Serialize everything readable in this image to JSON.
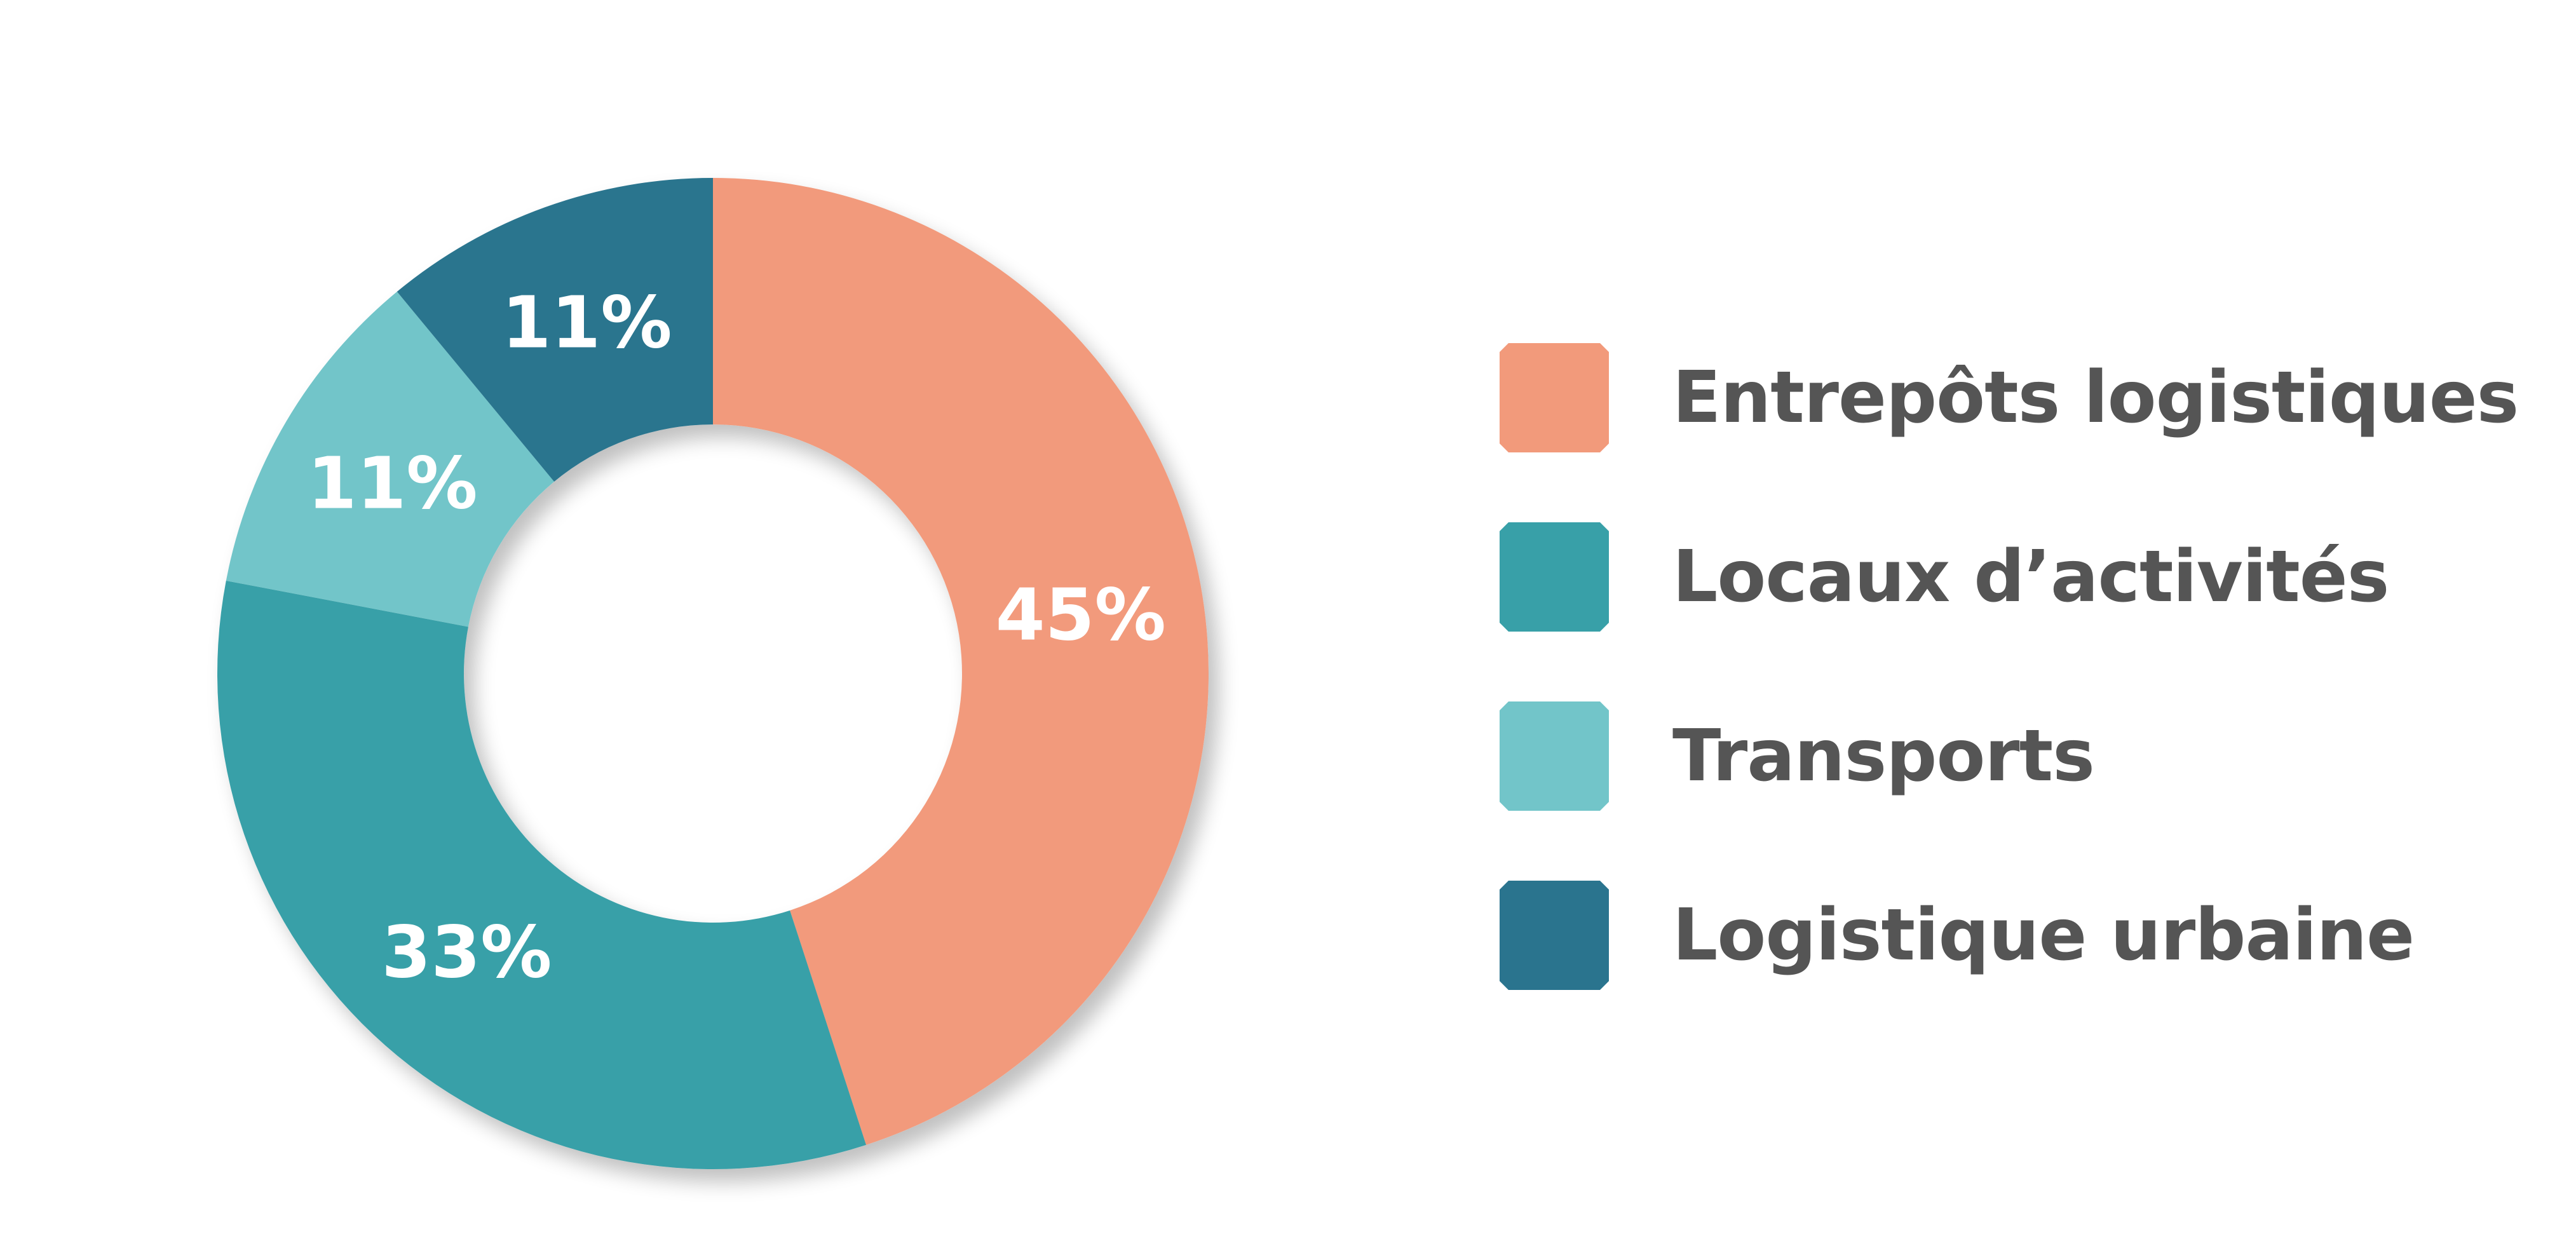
{
  "chart_data": {
    "type": "pie",
    "variant": "donut",
    "title": "",
    "categories": [
      "Entrepôts logistiques",
      "Locaux d’activités",
      "Transports",
      "Logistique urbaine"
    ],
    "values": [
      45,
      33,
      11,
      11
    ],
    "value_labels": [
      "45%",
      "33%",
      "11%",
      "11%"
    ],
    "colors": [
      "#F29A7B",
      "#38A0A8",
      "#72C5C9",
      "#2A748E"
    ],
    "start_angle": "12 o'clock",
    "direction": "clockwise",
    "legend_position": "right"
  },
  "legend": {
    "items": [
      {
        "label": "Entrepôts logistiques",
        "color": "#F29A7B"
      },
      {
        "label": "Locaux d’activités",
        "color": "#38A0A8"
      },
      {
        "label": "Transports",
        "color": "#72C5C9"
      },
      {
        "label": "Logistique urbaine",
        "color": "#2A748E"
      }
    ]
  }
}
